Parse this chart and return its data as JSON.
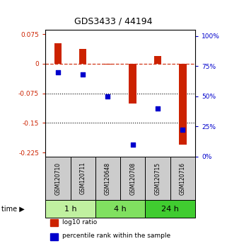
{
  "title": "GDS3433 / 44194",
  "samples": [
    "GSM120710",
    "GSM120711",
    "GSM120648",
    "GSM120708",
    "GSM120715",
    "GSM120716"
  ],
  "log10_ratio": [
    0.052,
    0.038,
    -0.002,
    -0.1,
    0.02,
    -0.205
  ],
  "percentile_rank": [
    70,
    68,
    50,
    10,
    40,
    22
  ],
  "time_groups": [
    {
      "label": "1 h",
      "cols": [
        0,
        1
      ],
      "color": "#c0f0a0"
    },
    {
      "label": "4 h",
      "cols": [
        2,
        3
      ],
      "color": "#80e060"
    },
    {
      "label": "24 h",
      "cols": [
        4,
        5
      ],
      "color": "#40cc30"
    }
  ],
  "ylim_left": [
    -0.235,
    0.085
  ],
  "ylim_right": [
    0,
    1.05
  ],
  "yticks_left": [
    0.075,
    0,
    -0.075,
    -0.15,
    -0.225
  ],
  "ytick_labels_left": [
    "0.075",
    "0",
    "-0.075",
    "-0.15",
    "-0.225"
  ],
  "yticks_right": [
    1.0,
    0.75,
    0.5,
    0.25,
    0.0
  ],
  "ytick_labels_right": [
    "100%",
    "75%",
    "50%",
    "25%",
    "0%"
  ],
  "hlines": [
    0,
    -0.075,
    -0.15
  ],
  "hlines_styles": [
    "dashed",
    "dotted",
    "dotted"
  ],
  "bar_color": "#cc2200",
  "square_color": "#0000cc",
  "bar_width": 0.3,
  "legend_items": [
    {
      "label": "log10 ratio",
      "color": "#cc2200"
    },
    {
      "label": "percentile rank within the sample",
      "color": "#0000cc"
    }
  ],
  "background_color": "#ffffff",
  "sample_bg_color": "#cccccc",
  "title_fontsize": 9,
  "tick_fontsize": 6.5,
  "sample_fontsize": 5.5,
  "time_fontsize": 8,
  "legend_fontsize": 6.5
}
